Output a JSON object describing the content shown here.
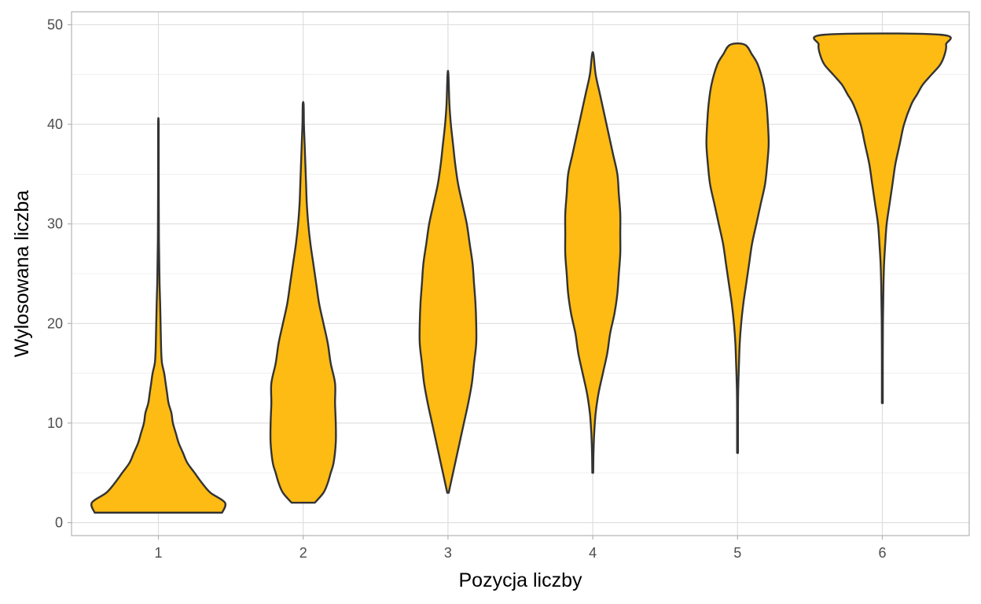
{
  "chart_data": {
    "type": "violin",
    "title": "",
    "xlabel": "Pozycja liczby",
    "ylabel": "Wylosowana liczba",
    "categories": [
      "1",
      "2",
      "3",
      "4",
      "5",
      "6"
    ],
    "ylim": [
      -1.3,
      51.3
    ],
    "y_ticks": [
      0,
      10,
      20,
      30,
      40,
      50
    ],
    "grid": true,
    "legend": "none",
    "fill_color": "#FDBB13",
    "stroke_color": "#333333",
    "violins": [
      {
        "category": "1",
        "min": 1,
        "max": 40,
        "profile": [
          [
            1,
            0.44
          ],
          [
            2,
            0.46
          ],
          [
            3,
            0.36
          ],
          [
            4,
            0.3
          ],
          [
            5,
            0.25
          ],
          [
            6,
            0.2
          ],
          [
            7,
            0.17
          ],
          [
            8,
            0.14
          ],
          [
            9,
            0.12
          ],
          [
            10,
            0.1
          ],
          [
            11,
            0.09
          ],
          [
            12,
            0.07
          ],
          [
            13,
            0.06
          ],
          [
            14,
            0.05
          ],
          [
            15,
            0.04
          ],
          [
            16,
            0.025
          ],
          [
            17,
            0.02
          ],
          [
            18,
            0.018
          ],
          [
            20,
            0.015
          ],
          [
            22,
            0.012
          ],
          [
            24,
            0.008
          ],
          [
            26,
            0.006
          ],
          [
            28,
            0.004
          ],
          [
            30,
            0.003
          ],
          [
            35,
            0.002
          ],
          [
            40,
            0.002
          ]
        ]
      },
      {
        "category": "2",
        "min": 2,
        "max": 42,
        "profile": [
          [
            2,
            0.08
          ],
          [
            3,
            0.14
          ],
          [
            4,
            0.17
          ],
          [
            5,
            0.19
          ],
          [
            6,
            0.21
          ],
          [
            8,
            0.225
          ],
          [
            10,
            0.225
          ],
          [
            12,
            0.22
          ],
          [
            14,
            0.22
          ],
          [
            16,
            0.19
          ],
          [
            18,
            0.17
          ],
          [
            20,
            0.14
          ],
          [
            22,
            0.11
          ],
          [
            24,
            0.09
          ],
          [
            26,
            0.07
          ],
          [
            28,
            0.05
          ],
          [
            30,
            0.035
          ],
          [
            32,
            0.025
          ],
          [
            34,
            0.02
          ],
          [
            36,
            0.015
          ],
          [
            38,
            0.01
          ],
          [
            40,
            0.005
          ],
          [
            42,
            0.003
          ]
        ]
      },
      {
        "category": "3",
        "min": 3,
        "max": 45,
        "profile": [
          [
            3,
            0.005
          ],
          [
            4,
            0.02
          ],
          [
            6,
            0.05
          ],
          [
            8,
            0.08
          ],
          [
            10,
            0.11
          ],
          [
            12,
            0.14
          ],
          [
            14,
            0.165
          ],
          [
            16,
            0.18
          ],
          [
            18,
            0.195
          ],
          [
            20,
            0.195
          ],
          [
            22,
            0.19
          ],
          [
            24,
            0.18
          ],
          [
            26,
            0.17
          ],
          [
            28,
            0.15
          ],
          [
            30,
            0.13
          ],
          [
            32,
            0.1
          ],
          [
            34,
            0.07
          ],
          [
            36,
            0.05
          ],
          [
            38,
            0.035
          ],
          [
            40,
            0.02
          ],
          [
            42,
            0.01
          ],
          [
            45,
            0.003
          ]
        ]
      },
      {
        "category": "4",
        "min": 5,
        "max": 47,
        "profile": [
          [
            5,
            0.003
          ],
          [
            7,
            0.005
          ],
          [
            9,
            0.01
          ],
          [
            11,
            0.02
          ],
          [
            13,
            0.04
          ],
          [
            15,
            0.07
          ],
          [
            17,
            0.1
          ],
          [
            19,
            0.12
          ],
          [
            21,
            0.15
          ],
          [
            23,
            0.17
          ],
          [
            25,
            0.18
          ],
          [
            27,
            0.19
          ],
          [
            29,
            0.19
          ],
          [
            31,
            0.19
          ],
          [
            33,
            0.18
          ],
          [
            35,
            0.17
          ],
          [
            37,
            0.14
          ],
          [
            39,
            0.11
          ],
          [
            41,
            0.08
          ],
          [
            43,
            0.05
          ],
          [
            45,
            0.02
          ],
          [
            47,
            0.005
          ]
        ]
      },
      {
        "category": "5",
        "min": 7,
        "max": 48,
        "profile": [
          [
            7,
            0.003
          ],
          [
            10,
            0.003
          ],
          [
            13,
            0.004
          ],
          [
            16,
            0.01
          ],
          [
            18,
            0.015
          ],
          [
            20,
            0.025
          ],
          [
            22,
            0.04
          ],
          [
            24,
            0.06
          ],
          [
            26,
            0.08
          ],
          [
            28,
            0.1
          ],
          [
            30,
            0.13
          ],
          [
            32,
            0.16
          ],
          [
            34,
            0.19
          ],
          [
            36,
            0.205
          ],
          [
            38,
            0.215
          ],
          [
            40,
            0.21
          ],
          [
            42,
            0.2
          ],
          [
            44,
            0.18
          ],
          [
            46,
            0.14
          ],
          [
            47,
            0.1
          ],
          [
            48,
            0.05
          ]
        ]
      },
      {
        "category": "6",
        "min": 12,
        "max": 49,
        "profile": [
          [
            12,
            0.003
          ],
          [
            16,
            0.003
          ],
          [
            20,
            0.004
          ],
          [
            22,
            0.006
          ],
          [
            24,
            0.008
          ],
          [
            26,
            0.012
          ],
          [
            28,
            0.02
          ],
          [
            30,
            0.03
          ],
          [
            32,
            0.05
          ],
          [
            34,
            0.07
          ],
          [
            36,
            0.09
          ],
          [
            38,
            0.12
          ],
          [
            40,
            0.15
          ],
          [
            42,
            0.2
          ],
          [
            43,
            0.24
          ],
          [
            44,
            0.28
          ],
          [
            45,
            0.34
          ],
          [
            46,
            0.4
          ],
          [
            47,
            0.43
          ],
          [
            48,
            0.44
          ],
          [
            49,
            0.4
          ]
        ]
      }
    ]
  }
}
